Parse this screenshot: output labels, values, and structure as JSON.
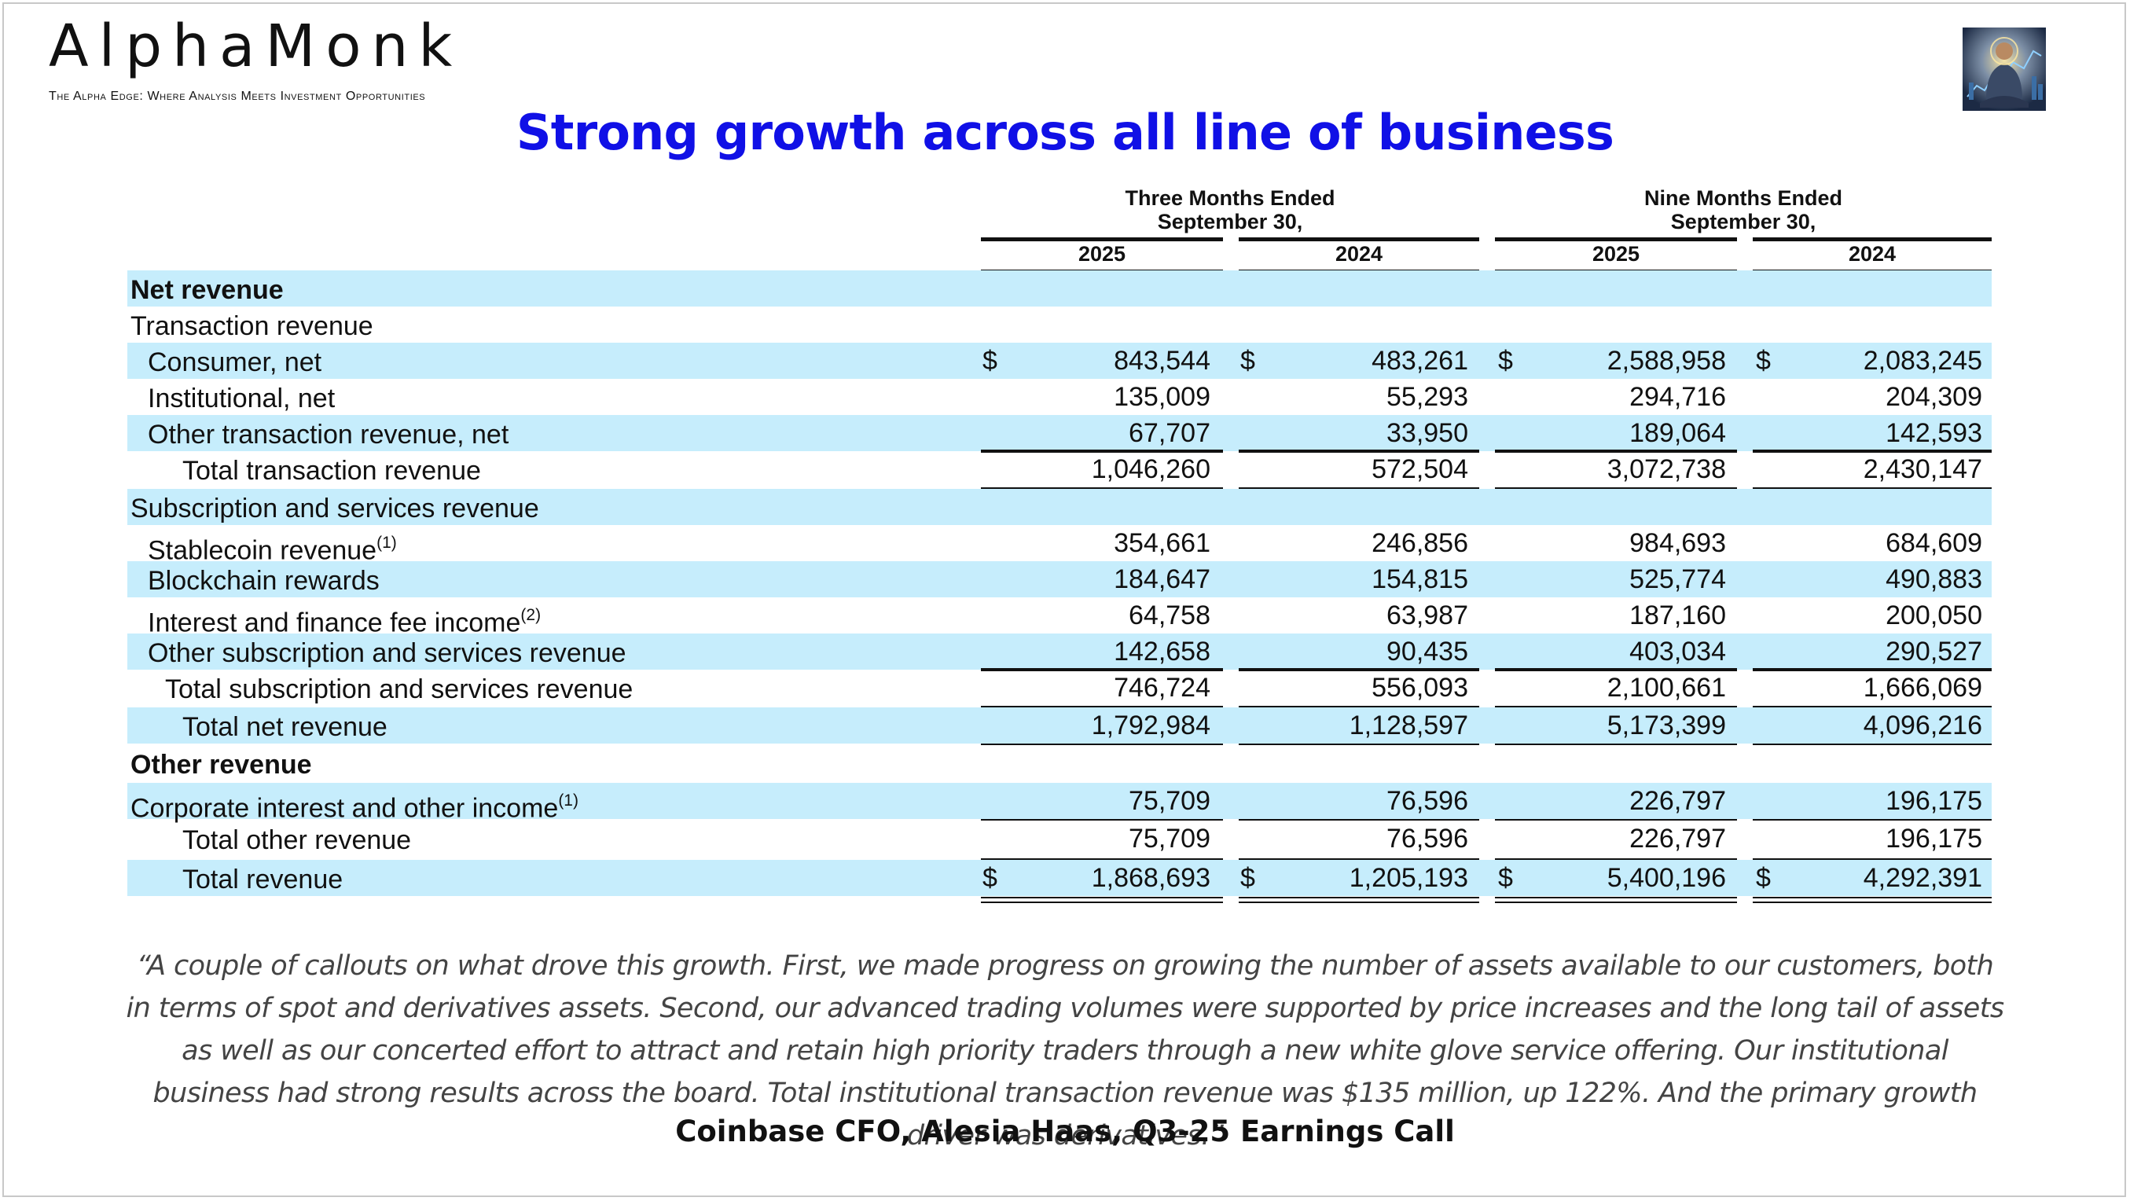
{
  "brand": {
    "name": "AlphaMonk",
    "tagline": "The Alpha Edge: Where Analysis Meets Investment Opportunities",
    "logo_icon": "meditating-monk-logo-icon"
  },
  "title": "Strong growth across all line of business",
  "table": {
    "period_headers": [
      {
        "line1": "Three Months Ended",
        "line2": "September 30,"
      },
      {
        "line1": "Nine Months Ended",
        "line2": "September 30,"
      }
    ],
    "years": [
      "2025",
      "2024",
      "2025",
      "2024"
    ],
    "currency_symbol": "$",
    "rows": [
      {
        "label": "Net revenue",
        "values": [
          "",
          "",
          "",
          ""
        ]
      },
      {
        "label": "Transaction revenue",
        "values": [
          "",
          "",
          "",
          ""
        ]
      },
      {
        "label": "Consumer, net",
        "values": [
          "843,544",
          "483,261",
          "2,588,958",
          "2,083,245"
        ]
      },
      {
        "label": "Institutional, net",
        "values": [
          "135,009",
          "55,293",
          "294,716",
          "204,309"
        ]
      },
      {
        "label": "Other transaction revenue, net",
        "values": [
          "67,707",
          "33,950",
          "189,064",
          "142,593"
        ]
      },
      {
        "label": "Total transaction revenue",
        "values": [
          "1,046,260",
          "572,504",
          "3,072,738",
          "2,430,147"
        ]
      },
      {
        "label": "Subscription and services revenue",
        "values": [
          "",
          "",
          "",
          ""
        ]
      },
      {
        "label": "Stablecoin revenue",
        "footnote": "(1)",
        "values": [
          "354,661",
          "246,856",
          "984,693",
          "684,609"
        ]
      },
      {
        "label": "Blockchain rewards",
        "values": [
          "184,647",
          "154,815",
          "525,774",
          "490,883"
        ]
      },
      {
        "label": "Interest and finance fee income",
        "footnote": "(2)",
        "values": [
          "64,758",
          "63,987",
          "187,160",
          "200,050"
        ]
      },
      {
        "label": "Other subscription and services revenue",
        "values": [
          "142,658",
          "90,435",
          "403,034",
          "290,527"
        ]
      },
      {
        "label": "Total subscription and services revenue",
        "values": [
          "746,724",
          "556,093",
          "2,100,661",
          "1,666,069"
        ]
      },
      {
        "label": "Total net revenue",
        "values": [
          "1,792,984",
          "1,128,597",
          "5,173,399",
          "4,096,216"
        ]
      },
      {
        "label": "Other revenue",
        "values": [
          "",
          "",
          "",
          ""
        ]
      },
      {
        "label": "Corporate interest and other income",
        "footnote": "(1)",
        "values": [
          "75,709",
          "76,596",
          "226,797",
          "196,175"
        ]
      },
      {
        "label": "Total other revenue",
        "values": [
          "75,709",
          "76,596",
          "226,797",
          "196,175"
        ]
      },
      {
        "label": "Total revenue",
        "values": [
          "1,868,693",
          "1,205,193",
          "5,400,196",
          "4,292,391"
        ]
      }
    ]
  },
  "quote": "“A couple of callouts on what drove this growth. First, we made progress on growing the number of assets available to our customers, both in terms of spot and derivatives assets. Second, our advanced trading volumes were supported by price increases and the long tail of assets as well as our concerted effort to attract and retain high priority traders through a new white glove service offering. Our institutional business had strong results across the board. Total institutional transaction revenue was $135 million, up 122%. And the primary growth driver was derivatives.”",
  "attribution": "Coinbase CFO, Alesia Haas, Q3-25 Earnings Call",
  "colors": {
    "title": "#1010e6",
    "band": "#c6edfc"
  }
}
